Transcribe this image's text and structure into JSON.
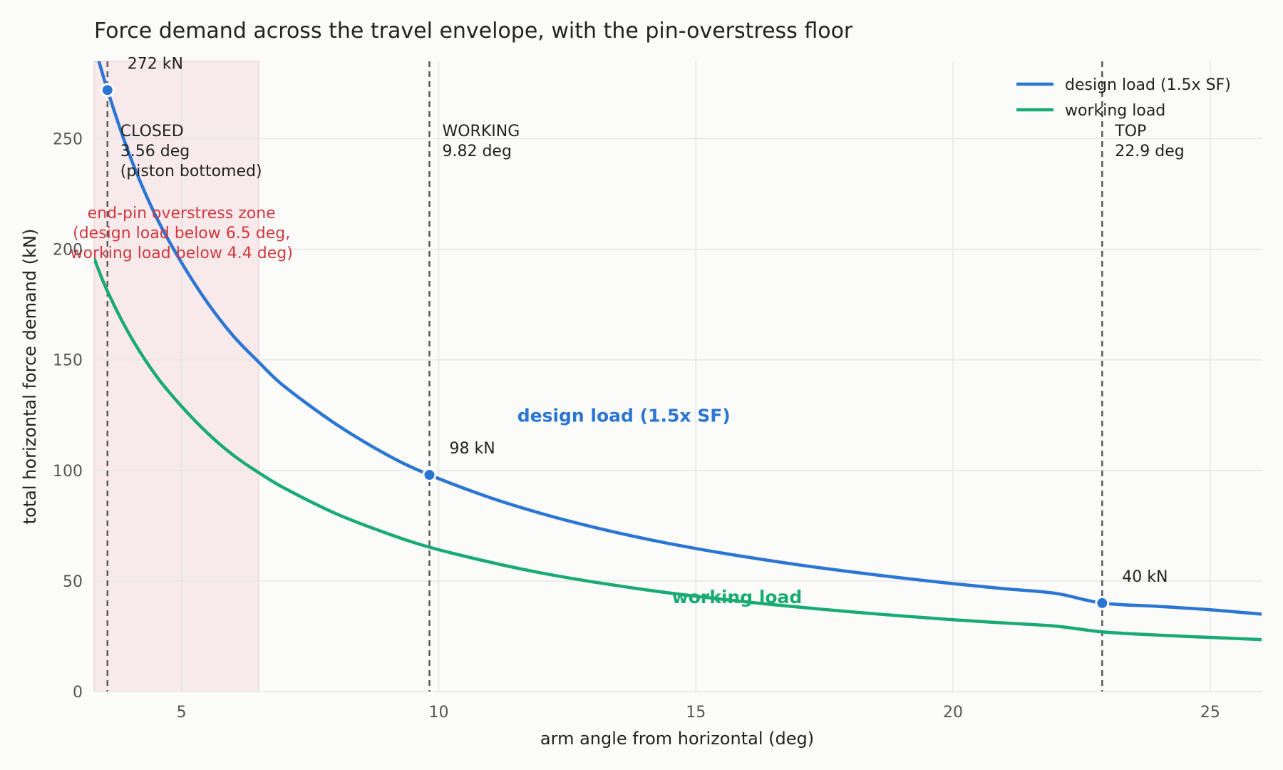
{
  "chart_data": {
    "type": "line",
    "title": "Force demand across the travel envelope, with the pin-overstress floor",
    "xlabel": "arm angle from horizontal (deg)",
    "ylabel": "total horizontal force demand (kN)",
    "xlim": [
      3.3,
      26
    ],
    "ylim": [
      0,
      285
    ],
    "xticks": [
      5,
      10,
      15,
      20,
      25
    ],
    "yticks": [
      0,
      50,
      100,
      150,
      200,
      250
    ],
    "grid": true,
    "legend_position": "top-right",
    "series": [
      {
        "name": "design load (1.5x SF)",
        "color": "#2b76d2",
        "x": [
          3.3,
          3.56,
          4,
          4.5,
          5,
          5.5,
          6,
          6.5,
          7,
          8,
          9,
          9.82,
          11,
          12,
          13,
          14,
          15,
          16,
          17,
          18,
          19,
          20,
          21,
          22,
          22.9,
          24,
          25,
          26
        ],
        "values": [
          293,
          272,
          242,
          215,
          194,
          176,
          161,
          149,
          138,
          121,
          107,
          98,
          87.7,
          80.5,
          74.4,
          69.2,
          64.7,
          60.8,
          57.3,
          54.2,
          51.4,
          48.8,
          46.5,
          44.4,
          40,
          38.5,
          37,
          35
        ]
      },
      {
        "name": "working load",
        "color": "#1aab74",
        "x": [
          3.3,
          3.56,
          4,
          4.5,
          5,
          5.5,
          6,
          6.5,
          7,
          8,
          9,
          9.82,
          11,
          12,
          13,
          14,
          15,
          16,
          17,
          18,
          19,
          20,
          21,
          22,
          22.9,
          24,
          25,
          26
        ],
        "values": [
          196,
          181,
          161,
          143,
          129,
          117,
          107,
          99,
          92,
          80.5,
          71.5,
          65.3,
          58.5,
          53.6,
          49.6,
          46.1,
          43.1,
          40.5,
          38.2,
          36.1,
          34.2,
          32.5,
          31,
          29.6,
          27,
          25.5,
          24.5,
          23.5
        ]
      }
    ],
    "inline_labels": [
      {
        "text": "design load (1.5x SF)",
        "x": 13.6,
        "y": 122,
        "color": "#2b76d2"
      },
      {
        "text": "working load",
        "x": 15.8,
        "y": 40,
        "color": "#1aab74"
      }
    ],
    "overstress_zone": {
      "x_from": 3.3,
      "x_to": 6.5,
      "lines": [
        "end-pin overstress zone",
        "(design load below 6.5 deg,",
        "working load below 4.4 deg)"
      ],
      "label_x": 5.0,
      "label_y": 214
    },
    "positions": [
      {
        "x": 3.56,
        "lines": [
          "CLOSED",
          "3.56 deg",
          "(piston bottomed)"
        ]
      },
      {
        "x": 9.82,
        "lines": [
          "WORKING",
          "9.82 deg"
        ]
      },
      {
        "x": 22.9,
        "lines": [
          "TOP",
          "22.9 deg"
        ]
      }
    ],
    "markers": [
      {
        "x": 3.56,
        "y": 272,
        "label": "272 kN"
      },
      {
        "x": 9.82,
        "y": 98,
        "label": "98 kN"
      },
      {
        "x": 22.9,
        "y": 40,
        "label": "40 kN"
      }
    ]
  }
}
